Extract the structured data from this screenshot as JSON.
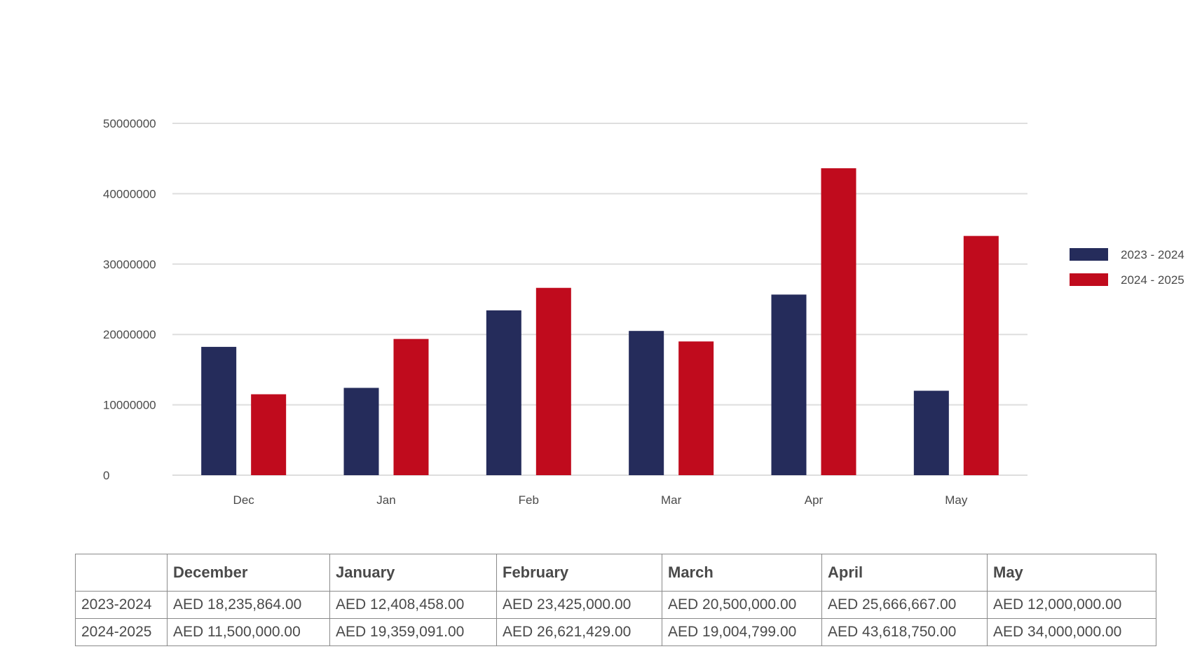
{
  "chart_data": {
    "type": "bar",
    "categories": [
      "Dec",
      "Jan",
      "Feb",
      "Mar",
      "Apr",
      "May"
    ],
    "series": [
      {
        "name": "2023 - 2024",
        "color": "#252c5b",
        "values": [
          18235864,
          12408458,
          23425000,
          20500000,
          25666667,
          12000000
        ]
      },
      {
        "name": "2024 - 2025",
        "color": "#c00b1d",
        "values": [
          11500000,
          19359091,
          26621429,
          19004799,
          43618750,
          34000000
        ]
      }
    ],
    "ylim": [
      0,
      50000000
    ],
    "yticks": [
      "0",
      "10000000",
      "20000000",
      "30000000",
      "40000000",
      "50000000"
    ],
    "grid": true,
    "legend": "right"
  },
  "table": {
    "headers": [
      "",
      "December",
      "January",
      "February",
      "March",
      "April",
      "May"
    ],
    "rows": [
      {
        "label": "2023-2024",
        "cells": [
          "AED 18,235,864.00",
          "AED 12,408,458.00",
          "AED 23,425,000.00",
          "AED 20,500,000.00",
          "AED 25,666,667.00",
          "AED 12,000,000.00"
        ]
      },
      {
        "label": "2024-2025",
        "cells": [
          "AED 11,500,000.00",
          "AED 19,359,091.00",
          "AED 26,621,429.00",
          "AED 19,004,799.00",
          "AED 43,618,750.00",
          "AED 34,000,000.00"
        ]
      }
    ]
  }
}
